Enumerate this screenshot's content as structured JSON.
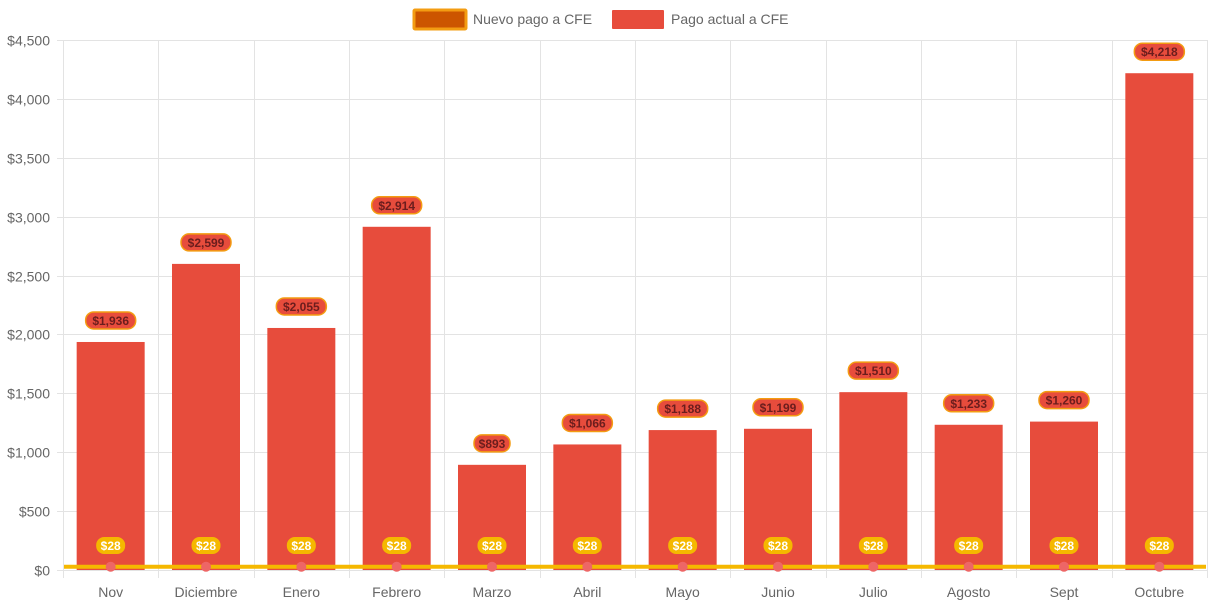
{
  "chart_data": {
    "type": "bar",
    "categories": [
      "Nov",
      "Diciembre",
      "Enero",
      "Febrero",
      "Marzo",
      "Abril",
      "Mayo",
      "Junio",
      "Julio",
      "Agosto",
      "Sept",
      "Octubre"
    ],
    "series": [
      {
        "name": "Nuevo pago a CFE",
        "type": "line",
        "values": [
          28,
          28,
          28,
          28,
          28,
          28,
          28,
          28,
          28,
          28,
          28,
          28
        ],
        "labels": [
          "$28",
          "$28",
          "$28",
          "$28",
          "$28",
          "$28",
          "$28",
          "$28",
          "$28",
          "$28",
          "$28",
          "$28"
        ],
        "color": "#f5b800",
        "legend_fill": "#cc5500",
        "legend_border": "#f39c12",
        "point_color": "#ee6666"
      },
      {
        "name": "Pago actual a CFE",
        "type": "bar",
        "values": [
          1936,
          2599,
          2055,
          2914,
          893,
          1066,
          1188,
          1199,
          1510,
          1233,
          1260,
          4218
        ],
        "labels": [
          "$1,936",
          "$2,599",
          "$2,055",
          "$2,914",
          "$893",
          "$1,066",
          "$1,188",
          "$1,199",
          "$1,510",
          "$1,233",
          "$1,260",
          "$4,218"
        ],
        "color": "#e74c3c",
        "label_bg": "#e74c3c",
        "label_border": "#f39c12"
      }
    ],
    "yticks": [
      "$0",
      "$500",
      "$1,000",
      "$1,500",
      "$2,000",
      "$2,500",
      "$3,000",
      "$3,500",
      "$4,000",
      "$4,500"
    ],
    "ylim": [
      0,
      4500
    ],
    "ystep": 500,
    "grid": true,
    "legend": "top-center",
    "title": "",
    "xlabel": "",
    "ylabel": ""
  }
}
